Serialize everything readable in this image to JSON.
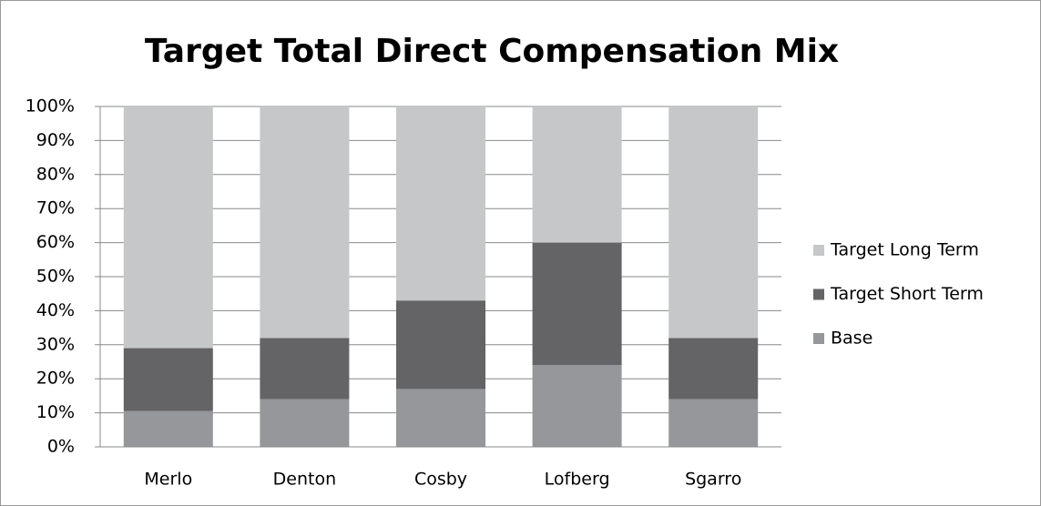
{
  "chart_data": {
    "type": "stacked_bar",
    "title": "Target Total Direct Compensation Mix",
    "categories": [
      "Merlo",
      "Denton",
      "Cosby",
      "Lofberg",
      "Sgarro"
    ],
    "series": [
      {
        "name": "Base",
        "color": "#96979a",
        "values": [
          10.5,
          14,
          17,
          24,
          14
        ]
      },
      {
        "name": "Target Short Term",
        "color": "#646466",
        "values": [
          18.5,
          18,
          26,
          36,
          18
        ]
      },
      {
        "name": "Target Long Term",
        "color": "#c6c7c9",
        "values": [
          71,
          68,
          57,
          40,
          68
        ]
      }
    ],
    "ylim": [
      0,
      100
    ],
    "yticks": [
      {
        "value": 0,
        "label": "0%"
      },
      {
        "value": 10,
        "label": "10%"
      },
      {
        "value": 20,
        "label": "20%"
      },
      {
        "value": 30,
        "label": "30%"
      },
      {
        "value": 40,
        "label": "40%"
      },
      {
        "value": 50,
        "label": "50%"
      },
      {
        "value": 60,
        "label": "60%"
      },
      {
        "value": 70,
        "label": "70%"
      },
      {
        "value": 80,
        "label": "80%"
      },
      {
        "value": 90,
        "label": "90%"
      },
      {
        "value": 100,
        "label": "100%"
      }
    ],
    "grid": true,
    "legend": "right"
  }
}
